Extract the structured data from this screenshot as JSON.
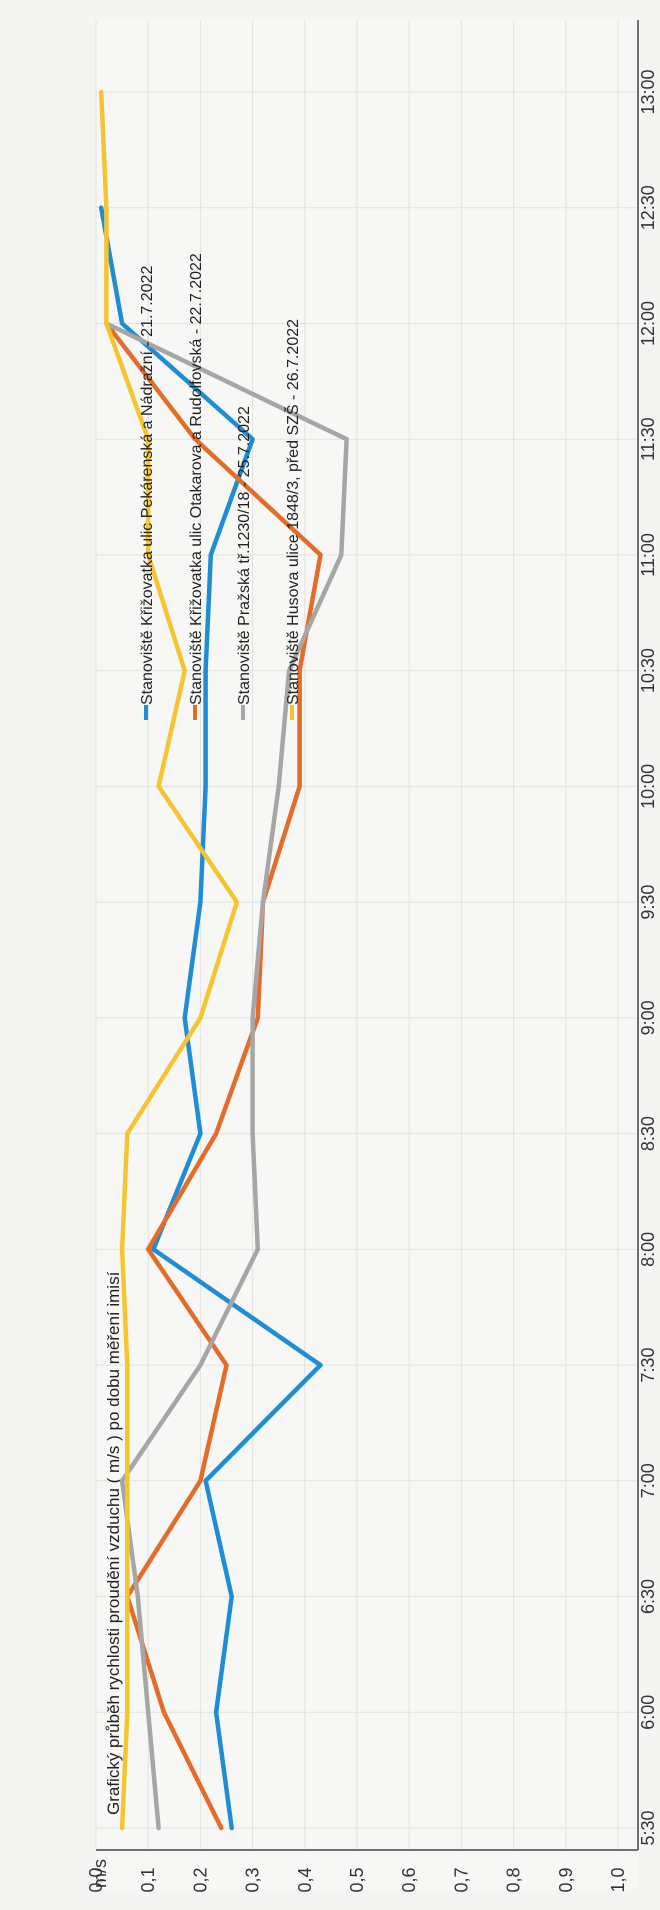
{
  "chart_data": {
    "type": "line",
    "title": "Grafický průběh rychlosti proudění vzduchu ( m/s ) po dobu měření imisí",
    "ylabel": "m/s",
    "xlabel": "",
    "grid": true,
    "legend_position": "right",
    "ylim": [
      0,
      1.0
    ],
    "y_ticks": [
      "0,0",
      "0,1",
      "0,2",
      "0,3",
      "0,4",
      "0,5",
      "0,6",
      "0,7",
      "0,8",
      "0,9",
      "1,0"
    ],
    "categories": [
      "5:30",
      "6:00",
      "6:30",
      "7:00",
      "7:30",
      "8:00",
      "8:30",
      "9:00",
      "9:30",
      "10:00",
      "10:30",
      "11:00",
      "11:30",
      "12:00",
      "12:30",
      "13:00"
    ],
    "series": [
      {
        "name": "Stanoviště Křižovatka ulic Pekárenská a Nádražní - 21.7.2022",
        "color": "#1f8dd6",
        "values": [
          0.26,
          0.23,
          0.26,
          0.21,
          0.43,
          0.11,
          0.2,
          0.17,
          0.2,
          0.21,
          0.21,
          0.22,
          0.3,
          0.05,
          0.01,
          null
        ]
      },
      {
        "name": "Stanoviště Křižovatka ulic Otakarova a Rudolfovská - 22.7.2022",
        "color": "#e46c2a",
        "values": [
          0.24,
          0.13,
          0.06,
          0.2,
          0.25,
          0.1,
          0.23,
          0.31,
          0.32,
          0.39,
          0.39,
          0.43,
          0.19,
          0.02,
          null,
          null
        ]
      },
      {
        "name": "Stanoviště Pražská tř.1230/18 - 25.7.2022",
        "color": "#a6a6a6",
        "values": [
          0.12,
          0.1,
          0.08,
          0.05,
          0.2,
          0.31,
          0.3,
          0.3,
          0.32,
          0.35,
          0.37,
          0.47,
          0.48,
          0.02,
          null,
          null
        ]
      },
      {
        "name": "Stanoviště Husova ulice 1848/3,  před SZŠ - 26.7.2022",
        "color": "#f5c431",
        "values": [
          0.05,
          0.06,
          0.06,
          0.06,
          0.06,
          0.05,
          0.06,
          0.2,
          0.27,
          0.12,
          0.17,
          0.1,
          0.1,
          0.02,
          0.02,
          0.01
        ]
      }
    ]
  }
}
